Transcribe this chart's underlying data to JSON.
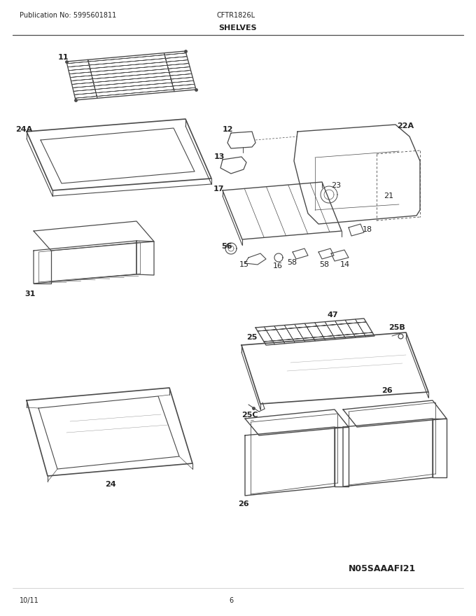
{
  "page_width": 6.8,
  "page_height": 8.8,
  "dpi": 100,
  "bg_color": "#ffffff",
  "header_pub": "Publication No: 5995601811",
  "header_model": "CFTR1826L",
  "header_section": "SHELVES",
  "footer_date": "10/11",
  "footer_page": "6",
  "watermark": "N05SAAAFI21",
  "line_color": "#4a4a4a",
  "label_color": "#222222"
}
